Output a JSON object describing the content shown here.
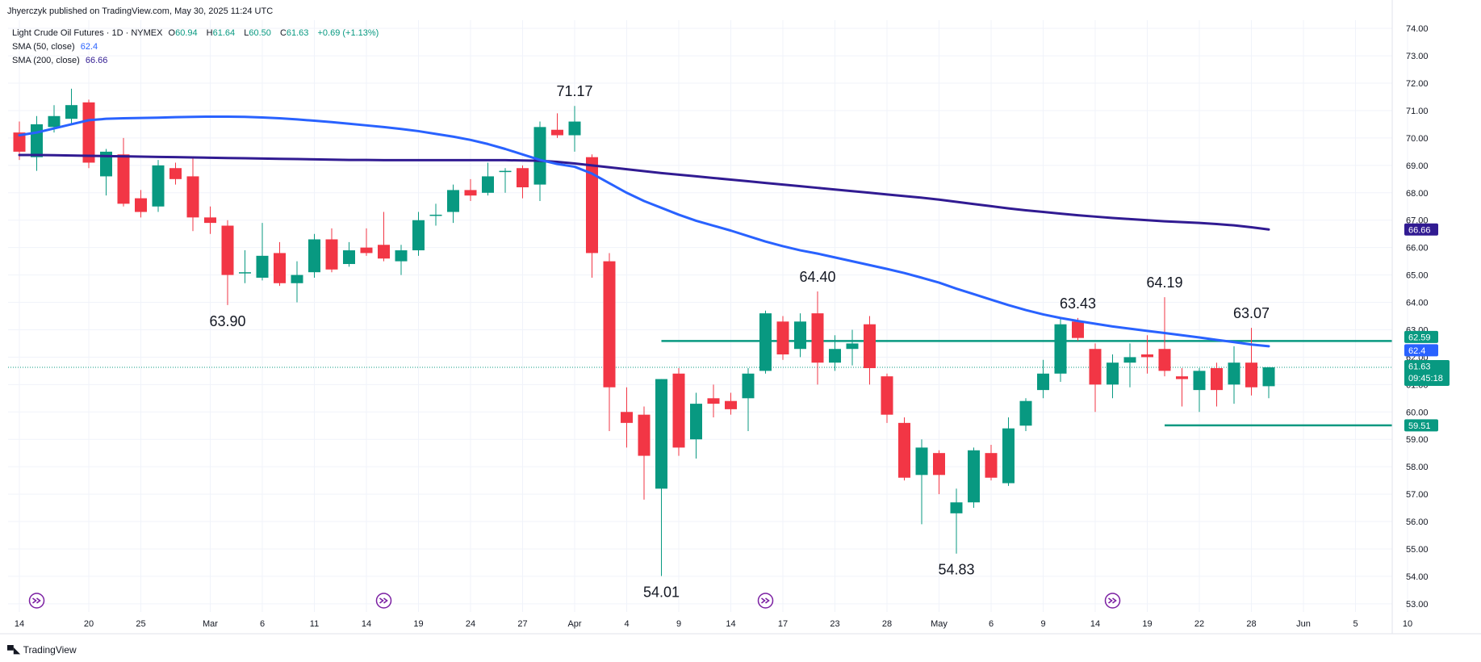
{
  "header": {
    "published": "Jhyerczyk published on TradingView.com, May 30, 2025 11:24 UTC"
  },
  "legend": {
    "title": "Light Crude Oil Futures · 1D · NYMEX",
    "o_label": "O",
    "o_value": "60.94",
    "h_label": "H",
    "h_value": "61.64",
    "l_label": "L",
    "l_value": "60.50",
    "c_label": "C",
    "c_value": "61.63",
    "change": "+0.69 (+1.13%)",
    "sma50_label": "SMA (50, close)",
    "sma50_value": "62.4",
    "sma200_label": "SMA (200, close)",
    "sma200_value": "66.66"
  },
  "footer": {
    "brand": "TradingView"
  },
  "colors": {
    "up": "#089981",
    "down": "#f23645",
    "sma50": "#2962ff",
    "sma200": "#311b92",
    "level": "#089981",
    "grid": "#f0f3fa",
    "axis_text": "#131722"
  },
  "chart_data": {
    "type": "candlestick",
    "ylim": [
      52.7,
      74.3
    ],
    "y_ticks": [
      "53.00",
      "54.00",
      "55.00",
      "56.00",
      "57.00",
      "58.00",
      "59.00",
      "60.00",
      "61.00",
      "62.00",
      "63.00",
      "64.00",
      "65.00",
      "66.00",
      "67.00",
      "68.00",
      "69.00",
      "70.00",
      "71.00",
      "72.00",
      "73.00",
      "74.00"
    ],
    "x_ticks": [
      {
        "i": 0,
        "label": "14"
      },
      {
        "i": 4,
        "label": "20"
      },
      {
        "i": 7,
        "label": "25"
      },
      {
        "i": 11,
        "label": "Mar"
      },
      {
        "i": 14,
        "label": "6"
      },
      {
        "i": 17,
        "label": "11"
      },
      {
        "i": 20,
        "label": "14"
      },
      {
        "i": 23,
        "label": "19"
      },
      {
        "i": 26,
        "label": "24"
      },
      {
        "i": 29,
        "label": "27"
      },
      {
        "i": 32,
        "label": "Apr"
      },
      {
        "i": 35,
        "label": "4"
      },
      {
        "i": 38,
        "label": "9"
      },
      {
        "i": 41,
        "label": "14"
      },
      {
        "i": 44,
        "label": "17"
      },
      {
        "i": 47,
        "label": "23"
      },
      {
        "i": 50,
        "label": "28"
      },
      {
        "i": 53,
        "label": "May"
      },
      {
        "i": 56,
        "label": "6"
      },
      {
        "i": 59,
        "label": "9"
      },
      {
        "i": 62,
        "label": "14"
      },
      {
        "i": 65,
        "label": "19"
      },
      {
        "i": 68,
        "label": "22"
      },
      {
        "i": 71,
        "label": "28"
      },
      {
        "i": 74,
        "label": "Jun"
      },
      {
        "i": 77,
        "label": "5"
      },
      {
        "i": 80,
        "label": "10"
      }
    ],
    "candles": [
      {
        "o": 70.2,
        "h": 70.6,
        "l": 69.2,
        "c": 69.5
      },
      {
        "o": 69.3,
        "h": 70.8,
        "l": 68.8,
        "c": 70.5
      },
      {
        "o": 70.4,
        "h": 71.2,
        "l": 70.2,
        "c": 70.8
      },
      {
        "o": 70.7,
        "h": 71.8,
        "l": 70.5,
        "c": 71.2
      },
      {
        "o": 71.3,
        "h": 71.4,
        "l": 68.9,
        "c": 69.1
      },
      {
        "o": 68.6,
        "h": 69.6,
        "l": 67.9,
        "c": 69.5
      },
      {
        "o": 69.4,
        "h": 70.0,
        "l": 67.5,
        "c": 67.6
      },
      {
        "o": 67.8,
        "h": 68.1,
        "l": 67.1,
        "c": 67.3
      },
      {
        "o": 67.5,
        "h": 69.2,
        "l": 67.3,
        "c": 69.0
      },
      {
        "o": 68.9,
        "h": 69.1,
        "l": 68.3,
        "c": 68.5
      },
      {
        "o": 68.6,
        "h": 69.3,
        "l": 66.6,
        "c": 67.1
      },
      {
        "o": 67.1,
        "h": 67.5,
        "l": 66.5,
        "c": 66.9
      },
      {
        "o": 66.8,
        "h": 67.0,
        "l": 63.9,
        "c": 65.0
      },
      {
        "o": 65.1,
        "h": 65.9,
        "l": 64.7,
        "c": 65.1
      },
      {
        "o": 64.9,
        "h": 66.9,
        "l": 64.8,
        "c": 65.7
      },
      {
        "o": 65.8,
        "h": 66.2,
        "l": 64.6,
        "c": 64.7
      },
      {
        "o": 64.7,
        "h": 65.5,
        "l": 64.0,
        "c": 65.0
      },
      {
        "o": 65.1,
        "h": 66.5,
        "l": 64.9,
        "c": 66.3
      },
      {
        "o": 66.3,
        "h": 66.7,
        "l": 65.1,
        "c": 65.2
      },
      {
        "o": 65.4,
        "h": 66.2,
        "l": 65.3,
        "c": 65.9
      },
      {
        "o": 66.0,
        "h": 66.7,
        "l": 65.7,
        "c": 65.8
      },
      {
        "o": 66.1,
        "h": 67.3,
        "l": 65.5,
        "c": 65.6
      },
      {
        "o": 65.5,
        "h": 66.1,
        "l": 65.0,
        "c": 65.9
      },
      {
        "o": 65.9,
        "h": 67.3,
        "l": 65.7,
        "c": 67.0
      },
      {
        "o": 67.2,
        "h": 67.6,
        "l": 66.8,
        "c": 67.2
      },
      {
        "o": 67.3,
        "h": 68.3,
        "l": 66.9,
        "c": 68.1
      },
      {
        "o": 68.1,
        "h": 68.5,
        "l": 67.7,
        "c": 67.9
      },
      {
        "o": 68.0,
        "h": 69.1,
        "l": 67.9,
        "c": 68.6
      },
      {
        "o": 68.8,
        "h": 68.9,
        "l": 68.0,
        "c": 68.8
      },
      {
        "o": 68.9,
        "h": 69.0,
        "l": 67.8,
        "c": 68.2
      },
      {
        "o": 68.3,
        "h": 70.6,
        "l": 67.7,
        "c": 70.4
      },
      {
        "o": 70.3,
        "h": 70.9,
        "l": 70.0,
        "c": 70.1
      },
      {
        "o": 70.1,
        "h": 71.17,
        "l": 69.5,
        "c": 70.6
      },
      {
        "o": 69.3,
        "h": 69.4,
        "l": 64.9,
        "c": 65.8
      },
      {
        "o": 65.5,
        "h": 65.8,
        "l": 59.3,
        "c": 60.9
      },
      {
        "o": 60.0,
        "h": 60.9,
        "l": 58.7,
        "c": 59.6
      },
      {
        "o": 59.9,
        "h": 60.2,
        "l": 56.8,
        "c": 58.4
      },
      {
        "o": 57.2,
        "h": 61.2,
        "l": 54.01,
        "c": 61.2
      },
      {
        "o": 61.4,
        "h": 61.6,
        "l": 58.4,
        "c": 58.7
      },
      {
        "o": 59.0,
        "h": 60.7,
        "l": 58.3,
        "c": 60.3
      },
      {
        "o": 60.5,
        "h": 61.0,
        "l": 59.8,
        "c": 60.3
      },
      {
        "o": 60.4,
        "h": 60.7,
        "l": 59.9,
        "c": 60.1
      },
      {
        "o": 60.5,
        "h": 61.6,
        "l": 59.3,
        "c": 61.4
      },
      {
        "o": 61.5,
        "h": 63.7,
        "l": 61.4,
        "c": 63.6
      },
      {
        "o": 63.3,
        "h": 63.5,
        "l": 61.9,
        "c": 62.1
      },
      {
        "o": 62.3,
        "h": 63.6,
        "l": 62.0,
        "c": 63.3
      },
      {
        "o": 63.6,
        "h": 64.4,
        "l": 61.0,
        "c": 61.8
      },
      {
        "o": 61.8,
        "h": 62.8,
        "l": 61.5,
        "c": 62.3
      },
      {
        "o": 62.3,
        "h": 63.0,
        "l": 61.7,
        "c": 62.5
      },
      {
        "o": 63.2,
        "h": 63.5,
        "l": 61.0,
        "c": 61.6
      },
      {
        "o": 61.3,
        "h": 61.4,
        "l": 59.6,
        "c": 59.9
      },
      {
        "o": 59.6,
        "h": 59.8,
        "l": 57.5,
        "c": 57.6
      },
      {
        "o": 57.7,
        "h": 59.0,
        "l": 55.9,
        "c": 58.7
      },
      {
        "o": 58.5,
        "h": 58.6,
        "l": 57.0,
        "c": 57.7
      },
      {
        "o": 56.3,
        "h": 57.2,
        "l": 54.83,
        "c": 56.7
      },
      {
        "o": 56.7,
        "h": 58.7,
        "l": 56.5,
        "c": 58.6
      },
      {
        "o": 58.5,
        "h": 58.8,
        "l": 57.5,
        "c": 57.6
      },
      {
        "o": 57.4,
        "h": 59.8,
        "l": 57.3,
        "c": 59.4
      },
      {
        "o": 59.5,
        "h": 60.5,
        "l": 59.3,
        "c": 60.4
      },
      {
        "o": 60.8,
        "h": 61.9,
        "l": 60.5,
        "c": 61.4
      },
      {
        "o": 61.4,
        "h": 63.4,
        "l": 61.1,
        "c": 63.2
      },
      {
        "o": 63.3,
        "h": 63.43,
        "l": 62.6,
        "c": 62.7
      },
      {
        "o": 62.3,
        "h": 62.5,
        "l": 60.0,
        "c": 61.0
      },
      {
        "o": 61.0,
        "h": 62.1,
        "l": 60.5,
        "c": 61.8
      },
      {
        "o": 61.8,
        "h": 62.5,
        "l": 60.9,
        "c": 62.0
      },
      {
        "o": 62.1,
        "h": 62.8,
        "l": 61.4,
        "c": 62.0
      },
      {
        "o": 62.3,
        "h": 64.19,
        "l": 61.3,
        "c": 61.5
      },
      {
        "o": 61.3,
        "h": 61.6,
        "l": 60.2,
        "c": 61.2
      },
      {
        "o": 60.8,
        "h": 61.6,
        "l": 60.0,
        "c": 61.5
      },
      {
        "o": 61.6,
        "h": 61.8,
        "l": 60.2,
        "c": 60.8
      },
      {
        "o": 61.0,
        "h": 62.4,
        "l": 60.3,
        "c": 61.8
      },
      {
        "o": 61.8,
        "h": 63.07,
        "l": 60.6,
        "c": 60.9
      },
      {
        "o": 60.94,
        "h": 61.64,
        "l": 60.5,
        "c": 61.63
      }
    ],
    "sma50": [
      70.1,
      70.2,
      70.35,
      70.5,
      70.65,
      70.7,
      70.72,
      70.73,
      70.74,
      70.76,
      70.77,
      70.78,
      70.78,
      70.77,
      70.75,
      70.72,
      70.68,
      70.63,
      70.58,
      70.52,
      70.46,
      70.4,
      70.33,
      70.25,
      70.15,
      70.05,
      69.93,
      69.78,
      69.6,
      69.4,
      69.2,
      69.05,
      68.95,
      68.7,
      68.35,
      68.0,
      67.7,
      67.45,
      67.2,
      66.98,
      66.8,
      66.62,
      66.42,
      66.22,
      66.05,
      65.9,
      65.78,
      65.64,
      65.5,
      65.36,
      65.22,
      65.07,
      64.9,
      64.72,
      64.5,
      64.3,
      64.1,
      63.9,
      63.72,
      63.56,
      63.43,
      63.32,
      63.22,
      63.12,
      63.04,
      62.96,
      62.88,
      62.8,
      62.72,
      62.63,
      62.55,
      62.46,
      62.4
    ],
    "sma200": [
      69.38,
      69.38,
      69.37,
      69.36,
      69.35,
      69.34,
      69.33,
      69.32,
      69.31,
      69.3,
      69.29,
      69.28,
      69.27,
      69.26,
      69.25,
      69.24,
      69.23,
      69.22,
      69.21,
      69.2,
      69.2,
      69.19,
      69.19,
      69.19,
      69.19,
      69.19,
      69.19,
      69.19,
      69.19,
      69.18,
      69.17,
      69.13,
      69.07,
      69.0,
      68.93,
      68.86,
      68.79,
      68.72,
      68.66,
      68.6,
      68.54,
      68.48,
      68.42,
      68.36,
      68.3,
      68.24,
      68.18,
      68.12,
      68.06,
      68.0,
      67.94,
      67.88,
      67.82,
      67.75,
      67.67,
      67.59,
      67.51,
      67.43,
      67.36,
      67.3,
      67.24,
      67.18,
      67.13,
      67.08,
      67.04,
      67.0,
      66.96,
      66.93,
      66.9,
      66.86,
      66.81,
      66.74,
      66.66
    ],
    "annotations": [
      {
        "i": 32,
        "price": 71.17,
        "text": "71.17",
        "pos": "above"
      },
      {
        "i": 12,
        "price": 63.9,
        "text": "63.90",
        "pos": "below"
      },
      {
        "i": 37,
        "price": 54.01,
        "text": "54.01",
        "pos": "below"
      },
      {
        "i": 46,
        "price": 64.4,
        "text": "64.40",
        "pos": "above"
      },
      {
        "i": 54,
        "price": 54.83,
        "text": "54.83",
        "pos": "below"
      },
      {
        "i": 61,
        "price": 63.43,
        "text": "63.43",
        "pos": "above"
      },
      {
        "i": 66,
        "price": 64.19,
        "text": "64.19",
        "pos": "above"
      },
      {
        "i": 71,
        "price": 63.07,
        "text": "63.07",
        "pos": "above"
      }
    ],
    "levels": [
      {
        "price": 62.59,
        "from_i": 37,
        "label": "62.59"
      },
      {
        "price": 59.51,
        "from_i": 66,
        "label": "59.51"
      }
    ],
    "price_tags": [
      {
        "price": 66.66,
        "text": "66.66",
        "kind": "sma200"
      },
      {
        "price": 62.59,
        "text": "62.59",
        "kind": "level"
      },
      {
        "price": 62.4,
        "text": "62.4",
        "kind": "sma50"
      },
      {
        "price": 61.63,
        "text": "61.63",
        "sub": "09:45:18",
        "kind": "last"
      },
      {
        "price": 59.51,
        "text": "59.51",
        "kind": "level"
      }
    ],
    "last_price": 61.63,
    "event_markers_i": [
      1,
      21,
      43,
      63
    ]
  }
}
